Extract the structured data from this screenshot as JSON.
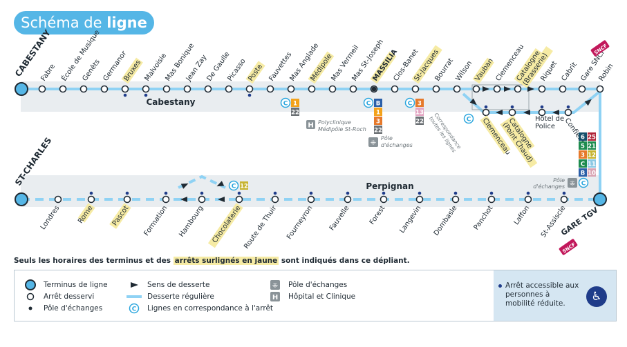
{
  "title": {
    "normal": "Schéma de ",
    "bold": "ligne"
  },
  "colors": {
    "line": "#8fd2f4",
    "band": "#e9edf0",
    "highlight": "#f6eba4",
    "text": "#1f2a33",
    "accent": "#55b6e6",
    "sncf": "#c2185b"
  },
  "line_top": {
    "terminus": "CABESTANY",
    "zone": "Cabestany",
    "stops": [
      {
        "name": "Fabre"
      },
      {
        "name": "École de Musique"
      },
      {
        "name": "Genêts"
      },
      {
        "name": "Germanor"
      },
      {
        "name": "Bruxes",
        "highlight": true,
        "dot": true
      },
      {
        "name": "Malvoisie",
        "dot": true
      },
      {
        "name": "Mas Bonique"
      },
      {
        "name": "Jean Zay"
      },
      {
        "name": "De Gaulle"
      },
      {
        "name": "Picasso"
      },
      {
        "name": "Poste",
        "highlight": true,
        "dot": true
      },
      {
        "name": "Fauvettes"
      },
      {
        "name": "Mas Anglade"
      },
      {
        "name": "Médipole",
        "highlight": true
      },
      {
        "name": "Mas Vermeil"
      },
      {
        "name": "Mas St-Joseph"
      },
      {
        "name": "MASSILIA",
        "highlight": true,
        "bold": true
      },
      {
        "name": "Clos-Banet"
      },
      {
        "name": "St-Jacques",
        "highlight": true
      },
      {
        "name": "Bourrat"
      },
      {
        "name": "Wilson"
      }
    ],
    "branch_upper": [
      {
        "name": "Vauban",
        "highlight": true
      },
      {
        "name": "Clemenceau"
      },
      {
        "name": "Catalogne (Brasserie)",
        "highlight": true
      },
      {
        "name": "Riquet"
      },
      {
        "name": "Cabrit"
      },
      {
        "name": "Gare SNCF"
      },
      {
        "name": "Robin"
      }
    ],
    "branch_lower": [
      {
        "name": "Clemenceau",
        "highlight": true
      },
      {
        "name": "Catalogne (Point Chaud)",
        "highlight": true
      },
      {
        "name": "Hôtel de Police"
      },
      {
        "name": "Confient"
      }
    ],
    "connections": {
      "mas_anglade": [
        "1",
        "22"
      ],
      "medipole_note": "Polyclinique Médipôle St-Roch",
      "massilia": [
        "B",
        "1",
        "3",
        "22"
      ],
      "massilia_note": "Pôle d'échanges",
      "st_jacques": [
        "3",
        "13",
        "22"
      ],
      "wilson_note": "Correspondance toutes les lignes",
      "sncf": "SNCF"
    }
  },
  "line_bottom": {
    "terminus": "ST-CHARLES",
    "zone": "Perpignan",
    "stops": [
      {
        "name": "Londres"
      },
      {
        "name": "Rome",
        "highlight": true,
        "dot": true
      },
      {
        "name": "Pascot",
        "highlight": true,
        "dot": true
      },
      {
        "name": "Formation",
        "dot": true
      },
      {
        "name": "Hambourg",
        "dot": true
      },
      {
        "name": "Chocolaterie",
        "highlight": true,
        "dot": true
      },
      {
        "name": "Route de Thuir",
        "dot": true
      },
      {
        "name": "Fourneyron",
        "dot": true
      },
      {
        "name": "Fauvelle",
        "dot": true
      },
      {
        "name": "Forest",
        "dot": true
      },
      {
        "name": "Langevin",
        "dot": true
      },
      {
        "name": "Dombasle",
        "dot": true
      },
      {
        "name": "Panchot",
        "dot": true
      },
      {
        "name": "Laffon",
        "dot": true
      },
      {
        "name": "St-Assiscle",
        "dot": true
      },
      {
        "name": "GARE TGV",
        "terminus": true,
        "bold": true
      }
    ],
    "chocolaterie_line": "12",
    "gare_tgv_lines": [
      [
        "6",
        "25"
      ],
      [
        "5",
        "21"
      ],
      [
        "3",
        "12"
      ],
      [
        "C",
        "11"
      ],
      [
        "B",
        "10"
      ]
    ],
    "pole_note": "Pôle d'échanges",
    "sncf": "SNCF"
  },
  "note": {
    "before": "Seuls les horaires des terminus et des ",
    "highlight": "arrêts surlignés en jaune",
    "after": " sont indiqués dans ce dépliant."
  },
  "legend": {
    "col1": [
      "Terminus de ligne",
      "Arrêt desservi",
      "Pôle d'échanges"
    ],
    "col2": [
      "Sens de desserte",
      "Desserte régulière",
      "Lignes en correspondance à l'arrêt"
    ],
    "col3": [
      "Pôle d'échanges",
      "Hôpital et Clinique"
    ],
    "accessible": "Arrêt accessible aux personnes à mobilité réduite."
  }
}
